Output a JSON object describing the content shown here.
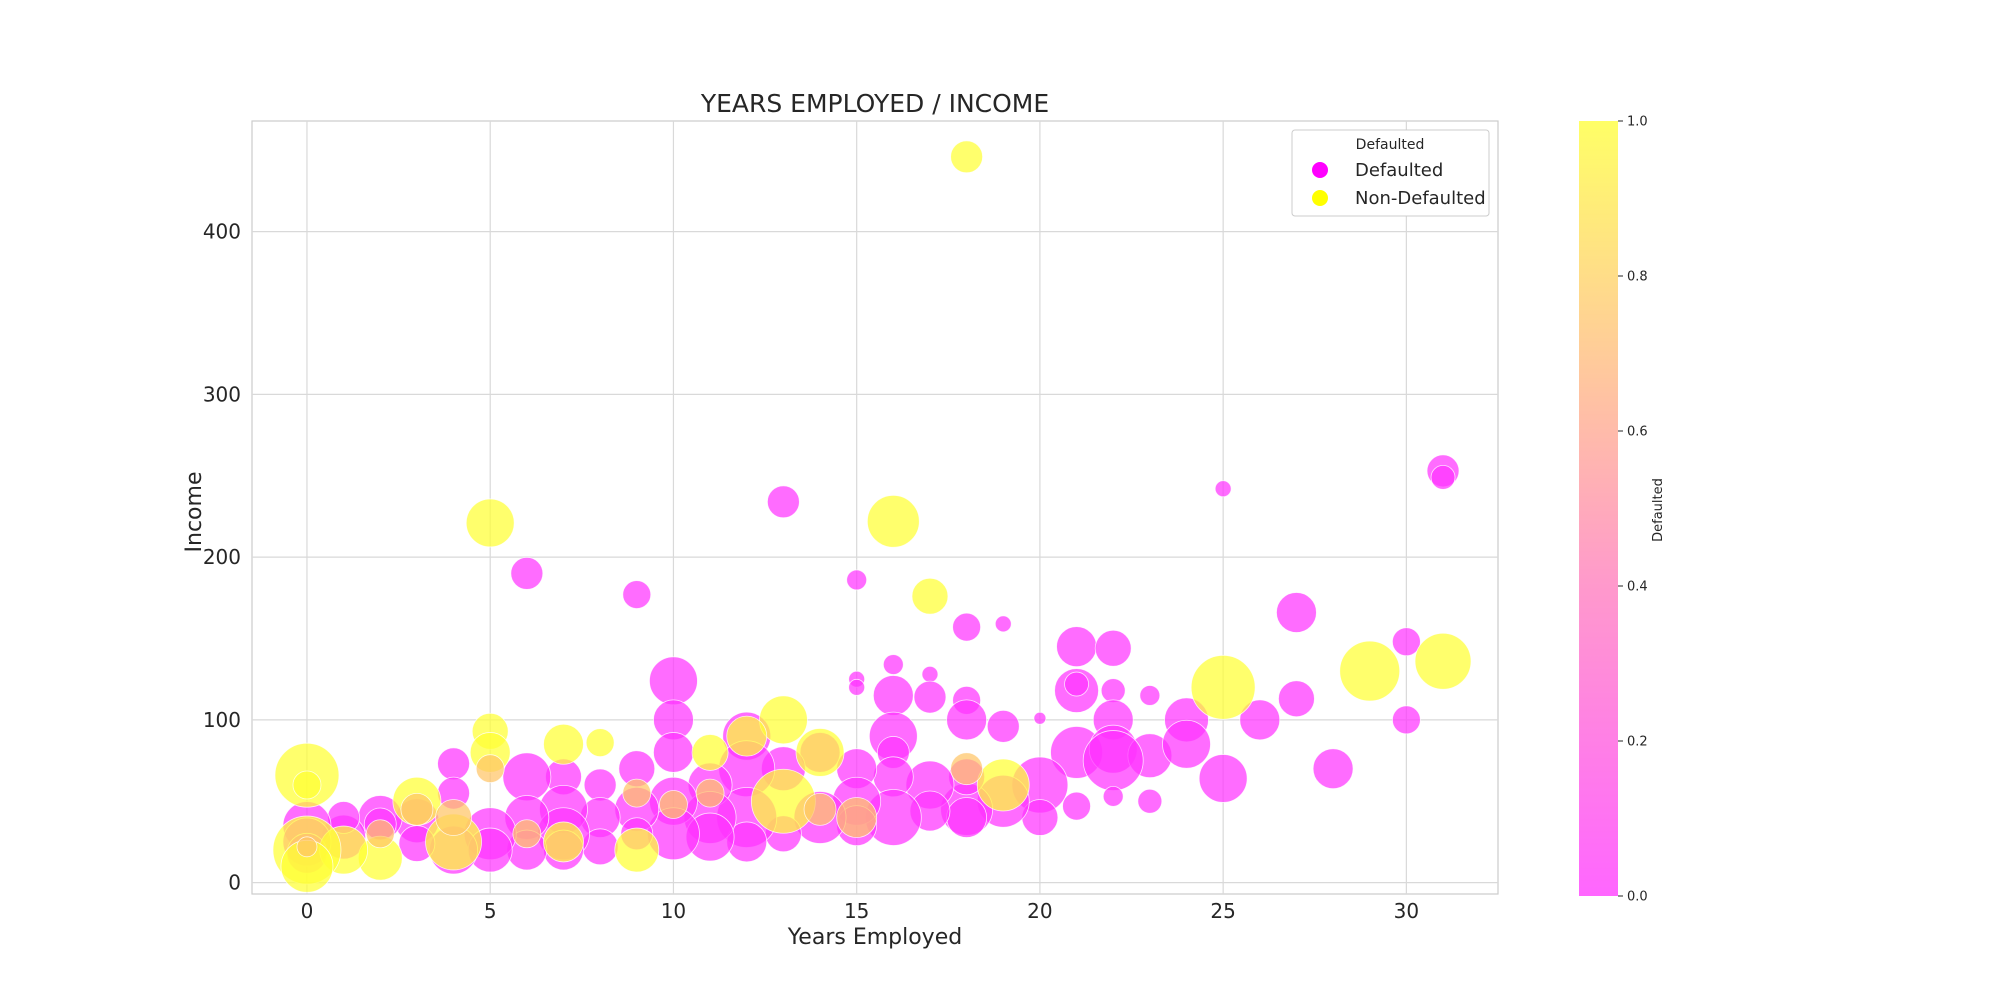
{
  "chart_data": {
    "type": "scatter",
    "title": "YEARS EMPLOYED / INCOME",
    "xlabel": "Years Employed",
    "ylabel": "Income",
    "xlim": [
      -1.5,
      32.5
    ],
    "ylim": [
      -7,
      468
    ],
    "xticks": [
      "0",
      "5",
      "10",
      "15",
      "20",
      "25",
      "30"
    ],
    "yticks": [
      "0",
      "100",
      "200",
      "300",
      "400"
    ],
    "grid": true,
    "legend": {
      "title": "Defaulted",
      "placement": "top-right",
      "entries": [
        {
          "label": "Defaulted",
          "color": "#ff00ff"
        },
        {
          "label": "Non-Defaulted",
          "color": "#ffff00"
        }
      ]
    },
    "colorbar": {
      "label": "Defaulted",
      "range": [
        0.0,
        1.0
      ],
      "ticks": [
        "0.0",
        "0.2",
        "0.4",
        "0.6",
        "0.8",
        "1.0"
      ],
      "colors": [
        "#ff66ff",
        "#ff99cc",
        "#ffcc99",
        "#ffff66"
      ]
    },
    "point_colors": {
      "defaulted": "#ff33ff",
      "non_defaulted": "#ffff33",
      "mixed": "#ffc566"
    },
    "series": [
      {
        "name": "Defaulted",
        "points": [
          {
            "x": 31,
            "y": 253,
            "s": 0.8
          },
          {
            "x": 31,
            "y": 249,
            "s": 0.6
          },
          {
            "x": 25,
            "y": 242,
            "s": 0.4
          },
          {
            "x": 13,
            "y": 234,
            "s": 0.8
          },
          {
            "x": 6,
            "y": 190,
            "s": 0.8
          },
          {
            "x": 9,
            "y": 177,
            "s": 0.7
          },
          {
            "x": 15,
            "y": 186,
            "s": 0.5
          },
          {
            "x": 27,
            "y": 166,
            "s": 1.0
          },
          {
            "x": 18,
            "y": 157,
            "s": 0.7
          },
          {
            "x": 19,
            "y": 159,
            "s": 0.4
          },
          {
            "x": 30,
            "y": 148,
            "s": 0.7
          },
          {
            "x": 21,
            "y": 145,
            "s": 1.0
          },
          {
            "x": 22,
            "y": 144,
            "s": 0.9
          },
          {
            "x": 16,
            "y": 134,
            "s": 0.5
          },
          {
            "x": 17,
            "y": 128,
            "s": 0.4
          },
          {
            "x": 10,
            "y": 124,
            "s": 1.2
          },
          {
            "x": 15,
            "y": 125,
            "s": 0.4
          },
          {
            "x": 15,
            "y": 120,
            "s": 0.4
          },
          {
            "x": 16,
            "y": 115,
            "s": 1.0
          },
          {
            "x": 17,
            "y": 114,
            "s": 0.8
          },
          {
            "x": 18,
            "y": 112,
            "s": 0.7
          },
          {
            "x": 21,
            "y": 118,
            "s": 1.1
          },
          {
            "x": 21,
            "y": 122,
            "s": 0.6
          },
          {
            "x": 22,
            "y": 118,
            "s": 0.6
          },
          {
            "x": 23,
            "y": 115,
            "s": 0.5
          },
          {
            "x": 24,
            "y": 100,
            "s": 1.1
          },
          {
            "x": 26,
            "y": 100,
            "s": 1.0
          },
          {
            "x": 27,
            "y": 113,
            "s": 0.9
          },
          {
            "x": 30,
            "y": 100,
            "s": 0.7
          },
          {
            "x": 10,
            "y": 100,
            "s": 1.0
          },
          {
            "x": 18,
            "y": 100,
            "s": 1.0
          },
          {
            "x": 19,
            "y": 96,
            "s": 0.8
          },
          {
            "x": 20,
            "y": 101,
            "s": 0.3
          },
          {
            "x": 22,
            "y": 100,
            "s": 1.0
          },
          {
            "x": 21,
            "y": 80,
            "s": 1.3
          },
          {
            "x": 22,
            "y": 82,
            "s": 1.2
          },
          {
            "x": 23,
            "y": 78,
            "s": 1.1
          },
          {
            "x": 24,
            "y": 85,
            "s": 1.2
          },
          {
            "x": 25,
            "y": 64,
            "s": 1.2
          },
          {
            "x": 28,
            "y": 70,
            "s": 1.0
          },
          {
            "x": 20,
            "y": 60,
            "s": 1.4
          },
          {
            "x": 22,
            "y": 75,
            "s": 1.5
          },
          {
            "x": 23,
            "y": 50,
            "s": 0.6
          },
          {
            "x": 22,
            "y": 53,
            "s": 0.5
          },
          {
            "x": 20,
            "y": 40,
            "s": 0.9
          },
          {
            "x": 21,
            "y": 47,
            "s": 0.7
          },
          {
            "x": 19,
            "y": 50,
            "s": 1.3
          },
          {
            "x": 18,
            "y": 45,
            "s": 1.3
          },
          {
            "x": 18,
            "y": 40,
            "s": 1.0
          },
          {
            "x": 18,
            "y": 65,
            "s": 0.9
          },
          {
            "x": 17,
            "y": 60,
            "s": 1.2
          },
          {
            "x": 17,
            "y": 44,
            "s": 1.0
          },
          {
            "x": 16,
            "y": 90,
            "s": 1.2
          },
          {
            "x": 16,
            "y": 80,
            "s": 0.8
          },
          {
            "x": 16,
            "y": 65,
            "s": 1.0
          },
          {
            "x": 16,
            "y": 40,
            "s": 1.4
          },
          {
            "x": 15,
            "y": 70,
            "s": 1.0
          },
          {
            "x": 15,
            "y": 50,
            "s": 1.2
          },
          {
            "x": 15,
            "y": 35,
            "s": 1.0
          },
          {
            "x": 14,
            "y": 80,
            "s": 1.0
          },
          {
            "x": 14,
            "y": 40,
            "s": 1.3
          },
          {
            "x": 13,
            "y": 70,
            "s": 1.1
          },
          {
            "x": 13,
            "y": 30,
            "s": 0.9
          },
          {
            "x": 12,
            "y": 90,
            "s": 1.2
          },
          {
            "x": 12,
            "y": 70,
            "s": 1.4
          },
          {
            "x": 12,
            "y": 40,
            "s": 1.5
          },
          {
            "x": 12,
            "y": 25,
            "s": 1.0
          },
          {
            "x": 11,
            "y": 60,
            "s": 1.1
          },
          {
            "x": 11,
            "y": 40,
            "s": 1.3
          },
          {
            "x": 11,
            "y": 28,
            "s": 1.2
          },
          {
            "x": 10,
            "y": 80,
            "s": 1.0
          },
          {
            "x": 10,
            "y": 50,
            "s": 1.2
          },
          {
            "x": 10,
            "y": 30,
            "s": 1.3
          },
          {
            "x": 9,
            "y": 70,
            "s": 0.9
          },
          {
            "x": 9,
            "y": 45,
            "s": 1.1
          },
          {
            "x": 9,
            "y": 30,
            "s": 0.8
          },
          {
            "x": 8,
            "y": 60,
            "s": 0.8
          },
          {
            "x": 8,
            "y": 40,
            "s": 1.0
          },
          {
            "x": 8,
            "y": 22,
            "s": 0.9
          },
          {
            "x": 7,
            "y": 65,
            "s": 0.9
          },
          {
            "x": 7,
            "y": 45,
            "s": 1.2
          },
          {
            "x": 7,
            "y": 30,
            "s": 1.3
          },
          {
            "x": 7,
            "y": 20,
            "s": 1.0
          },
          {
            "x": 6,
            "y": 65,
            "s": 1.2
          },
          {
            "x": 6,
            "y": 40,
            "s": 1.1
          },
          {
            "x": 6,
            "y": 20,
            "s": 1.0
          },
          {
            "x": 5,
            "y": 30,
            "s": 1.3
          },
          {
            "x": 5,
            "y": 20,
            "s": 1.1
          },
          {
            "x": 4,
            "y": 73,
            "s": 0.8
          },
          {
            "x": 4,
            "y": 55,
            "s": 0.8
          },
          {
            "x": 4,
            "y": 20,
            "s": 1.2
          },
          {
            "x": 3,
            "y": 38,
            "s": 1.1
          },
          {
            "x": 3,
            "y": 24,
            "s": 0.9
          },
          {
            "x": 2,
            "y": 40,
            "s": 1.1
          },
          {
            "x": 2,
            "y": 36,
            "s": 0.8
          },
          {
            "x": 1,
            "y": 28,
            "s": 1.1
          },
          {
            "x": 1,
            "y": 40,
            "s": 0.8
          },
          {
            "x": 0,
            "y": 35,
            "s": 1.2
          },
          {
            "x": 0,
            "y": 25,
            "s": 1.2
          },
          {
            "x": 0,
            "y": 18,
            "s": 1.0
          }
        ]
      },
      {
        "name": "Non-Defaulted",
        "points": [
          {
            "x": 18,
            "y": 446,
            "s": 0.8
          },
          {
            "x": 5,
            "y": 221,
            "s": 1.2
          },
          {
            "x": 16,
            "y": 222,
            "s": 1.3
          },
          {
            "x": 17,
            "y": 176,
            "s": 0.9
          },
          {
            "x": 31,
            "y": 136,
            "s": 1.4
          },
          {
            "x": 29,
            "y": 130,
            "s": 1.5
          },
          {
            "x": 25,
            "y": 120,
            "s": 1.6
          },
          {
            "x": 13,
            "y": 100,
            "s": 1.2
          },
          {
            "x": 12,
            "y": 90,
            "s": 1.0
          },
          {
            "x": 5,
            "y": 93,
            "s": 0.9
          },
          {
            "x": 7,
            "y": 85,
            "s": 1.0
          },
          {
            "x": 8,
            "y": 86,
            "s": 0.7
          },
          {
            "x": 0,
            "y": 66,
            "s": 1.6
          },
          {
            "x": 0,
            "y": 60,
            "s": 0.7
          },
          {
            "x": 5,
            "y": 80,
            "s": 1.0
          },
          {
            "x": 11,
            "y": 80,
            "s": 0.9
          },
          {
            "x": 14,
            "y": 80,
            "s": 1.2
          },
          {
            "x": 19,
            "y": 60,
            "s": 1.3
          },
          {
            "x": 13,
            "y": 50,
            "s": 1.6
          },
          {
            "x": 9,
            "y": 20,
            "s": 1.1
          },
          {
            "x": 4,
            "y": 25,
            "s": 1.4
          },
          {
            "x": 3,
            "y": 50,
            "s": 1.2
          },
          {
            "x": 2,
            "y": 15,
            "s": 1.1
          },
          {
            "x": 1,
            "y": 20,
            "s": 1.2
          },
          {
            "x": 0,
            "y": 20,
            "s": 1.7
          },
          {
            "x": 0,
            "y": 10,
            "s": 1.3
          },
          {
            "x": 7,
            "y": 25,
            "s": 1.0
          }
        ]
      },
      {
        "name": "",
        "points": [
          {
            "x": 18,
            "y": 70,
            "s": 0.8
          },
          {
            "x": 11,
            "y": 55,
            "s": 0.7
          },
          {
            "x": 10,
            "y": 48,
            "s": 0.7
          },
          {
            "x": 6,
            "y": 30,
            "s": 0.7
          },
          {
            "x": 3,
            "y": 45,
            "s": 0.8
          },
          {
            "x": 5,
            "y": 70,
            "s": 0.7
          },
          {
            "x": 14,
            "y": 45,
            "s": 0.8
          },
          {
            "x": 9,
            "y": 55,
            "s": 0.7
          },
          {
            "x": 15,
            "y": 40,
            "s": 1.0
          },
          {
            "x": 4,
            "y": 40,
            "s": 0.9
          },
          {
            "x": 0,
            "y": 22,
            "s": 0.5
          },
          {
            "x": 2,
            "y": 30,
            "s": 0.7
          }
        ]
      }
    ]
  }
}
